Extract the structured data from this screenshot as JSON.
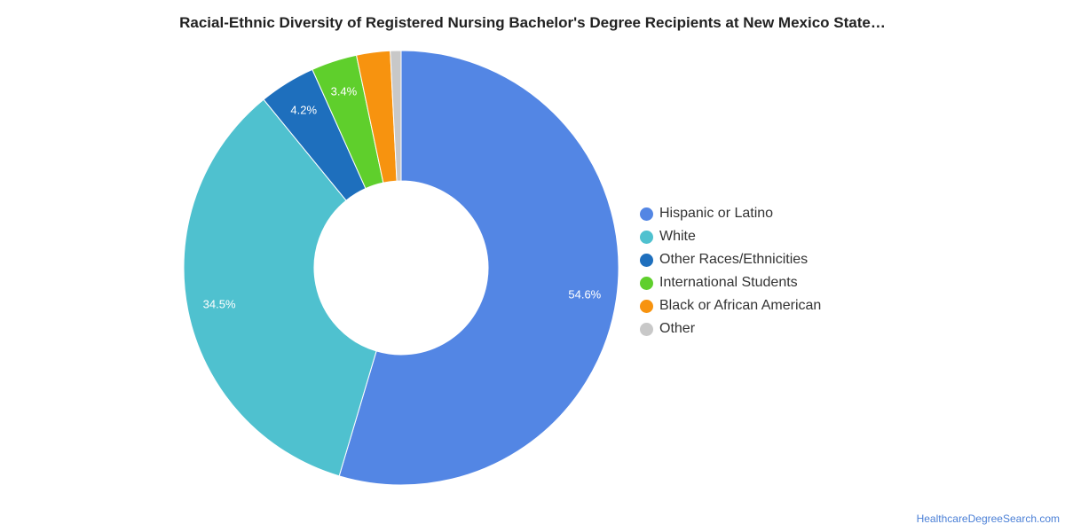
{
  "chart_data": {
    "type": "pie",
    "style": "donut",
    "title": "Racial-Ethnic Diversity of Registered Nursing Bachelor's Degree Recipients at New Mexico State…",
    "legend_position": "right",
    "slices": [
      {
        "name": "Hispanic or Latino",
        "value": 54.6,
        "label": "54.6%",
        "color": "#5386e4"
      },
      {
        "name": "White",
        "value": 34.5,
        "label": "34.5%",
        "color": "#4fc1cf"
      },
      {
        "name": "Other Races/Ethnicities",
        "value": 4.2,
        "label": "4.2%",
        "color": "#1e6fbd"
      },
      {
        "name": "International Students",
        "value": 3.4,
        "label": "3.4%",
        "color": "#5fcf2c"
      },
      {
        "name": "Black or African American",
        "value": 2.5,
        "label": "",
        "color": "#f7930f"
      },
      {
        "name": "Other",
        "value": 0.8,
        "label": "",
        "color": "#c8c8c8"
      }
    ]
  },
  "footer": {
    "source": "HealthcareDegreeSearch.com"
  }
}
